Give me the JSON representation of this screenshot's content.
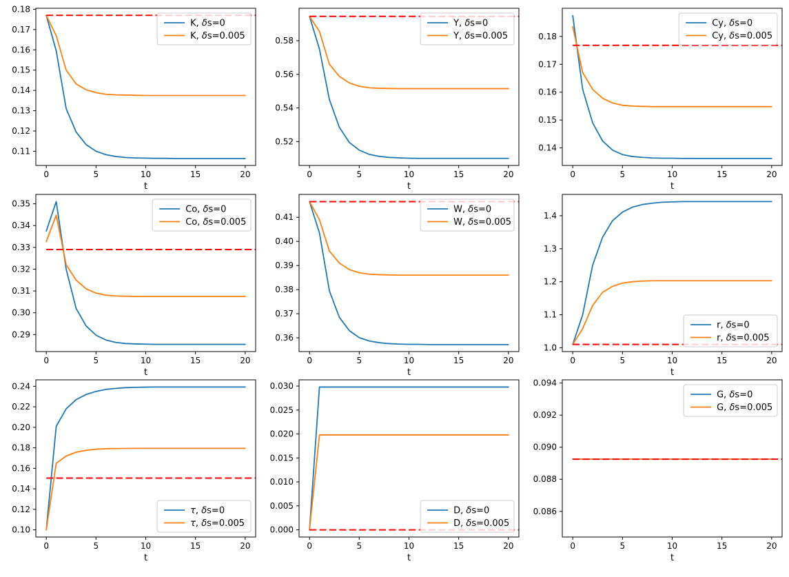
{
  "figure": {
    "title": "",
    "background": "#ffffff",
    "rows": 3,
    "cols": 3
  },
  "colors": {
    "series_baseline": "#1f77b4",
    "series_shock": "#ff7f0e",
    "reference": "#ff0000",
    "legend_border": "#cccccc"
  },
  "chart_data": [
    {
      "type": "line",
      "variable": "K",
      "xlabel": "t",
      "xlim": [
        -1.05,
        21.05
      ],
      "ylim": [
        0.103,
        0.1805
      ],
      "xticks": [
        0,
        5,
        10,
        15,
        20
      ],
      "xtick_labels": [
        "0",
        "5",
        "10",
        "15",
        "20"
      ],
      "yticks": [
        0.11,
        0.12,
        0.13,
        0.14,
        0.15,
        0.16,
        0.17,
        0.18
      ],
      "ytick_labels": [
        "0.11",
        "0.12",
        "0.13",
        "0.14",
        "0.15",
        "0.16",
        "0.17",
        "0.18"
      ],
      "legend_loc": "upper right",
      "grid": false,
      "ref_value": 0.177,
      "x": [
        0,
        1,
        2,
        3,
        4,
        5,
        6,
        7,
        8,
        9,
        10,
        11,
        12,
        13,
        14,
        15,
        16,
        17,
        18,
        19,
        20
      ],
      "series": [
        {
          "name": "K, δs=0",
          "color": "#1f77b4",
          "values": [
            0.177,
            0.1595,
            0.131,
            0.1195,
            0.1133,
            0.11,
            0.1083,
            0.1074,
            0.1069,
            0.1067,
            0.1066,
            0.1065,
            0.1065,
            0.1064,
            0.1064,
            0.1064,
            0.1064,
            0.1064,
            0.1064,
            0.1064,
            0.1064
          ]
        },
        {
          "name": "K, δs=0.005",
          "color": "#ff7f0e",
          "values": [
            0.177,
            0.167,
            0.15,
            0.1432,
            0.1403,
            0.1389,
            0.1381,
            0.1378,
            0.1377,
            0.1376,
            0.1375,
            0.1375,
            0.1375,
            0.1375,
            0.1375,
            0.1375,
            0.1375,
            0.1375,
            0.1375,
            0.1375,
            0.1375
          ]
        }
      ]
    },
    {
      "type": "line",
      "variable": "Y",
      "xlabel": "t",
      "xlim": [
        -1.05,
        21.05
      ],
      "ylim": [
        0.5058,
        0.5993
      ],
      "xticks": [
        0,
        5,
        10,
        15,
        20
      ],
      "xtick_labels": [
        "0",
        "5",
        "10",
        "15",
        "20"
      ],
      "yticks": [
        0.52,
        0.54,
        0.56,
        0.58
      ],
      "ytick_labels": [
        "0.52",
        "0.54",
        "0.56",
        "0.58"
      ],
      "legend_loc": "upper right",
      "grid": false,
      "ref_value": 0.5945,
      "x": [
        0,
        1,
        2,
        3,
        4,
        5,
        6,
        7,
        8,
        9,
        10,
        11,
        12,
        13,
        14,
        15,
        16,
        17,
        18,
        19,
        20
      ],
      "series": [
        {
          "name": "Y, δs=0",
          "color": "#1f77b4",
          "values": [
            0.5945,
            0.575,
            0.545,
            0.5285,
            0.5195,
            0.5149,
            0.5124,
            0.5112,
            0.5106,
            0.5103,
            0.5101,
            0.51,
            0.51,
            0.51,
            0.51,
            0.51,
            0.51,
            0.51,
            0.51,
            0.51,
            0.51
          ]
        },
        {
          "name": "Y, δs=0.005",
          "color": "#ff7f0e",
          "values": [
            0.5945,
            0.5855,
            0.566,
            0.5588,
            0.5549,
            0.5529,
            0.552,
            0.5517,
            0.5516,
            0.5515,
            0.5515,
            0.5515,
            0.5515,
            0.5515,
            0.5515,
            0.5515,
            0.5515,
            0.5515,
            0.5515,
            0.5515,
            0.5515
          ]
        }
      ]
    },
    {
      "type": "line",
      "variable": "Cy",
      "xlabel": "t",
      "xlim": [
        -1.05,
        21.05
      ],
      "ylim": [
        0.1337,
        0.1901
      ],
      "xticks": [
        0,
        5,
        10,
        15,
        20
      ],
      "xtick_labels": [
        "0",
        "5",
        "10",
        "15",
        "20"
      ],
      "yticks": [
        0.14,
        0.15,
        0.16,
        0.17,
        0.18
      ],
      "ytick_labels": [
        "0.14",
        "0.15",
        "0.16",
        "0.17",
        "0.18"
      ],
      "legend_loc": "upper right",
      "grid": false,
      "ref_value": 0.1768,
      "x": [
        0,
        1,
        2,
        3,
        4,
        5,
        6,
        7,
        8,
        9,
        10,
        11,
        12,
        13,
        14,
        15,
        16,
        17,
        18,
        19,
        20
      ],
      "series": [
        {
          "name": "Cy, δs=0",
          "color": "#1f77b4",
          "values": [
            0.1875,
            0.161,
            0.149,
            0.1425,
            0.1392,
            0.1376,
            0.1369,
            0.1366,
            0.1364,
            0.1363,
            0.1363,
            0.1362,
            0.1362,
            0.1362,
            0.1362,
            0.1362,
            0.1362,
            0.1362,
            0.1362,
            0.1362,
            0.1362
          ]
        },
        {
          "name": "Cy, δs=0.005",
          "color": "#ff7f0e",
          "values": [
            0.1835,
            0.167,
            0.161,
            0.1578,
            0.1561,
            0.1553,
            0.155,
            0.1549,
            0.1548,
            0.1548,
            0.1548,
            0.1548,
            0.1548,
            0.1548,
            0.1548,
            0.1548,
            0.1548,
            0.1548,
            0.1548,
            0.1548,
            0.1548
          ]
        }
      ]
    },
    {
      "type": "line",
      "variable": "Co",
      "xlabel": "t",
      "xlim": [
        -1.05,
        21.05
      ],
      "ylim": [
        0.2822,
        0.3543
      ],
      "xticks": [
        0,
        5,
        10,
        15,
        20
      ],
      "xtick_labels": [
        "0",
        "5",
        "10",
        "15",
        "20"
      ],
      "yticks": [
        0.29,
        0.3,
        0.31,
        0.32,
        0.33,
        0.34,
        0.35
      ],
      "ytick_labels": [
        "0.29",
        "0.30",
        "0.31",
        "0.32",
        "0.33",
        "0.34",
        "0.35"
      ],
      "legend_loc": "upper right",
      "grid": false,
      "ref_value": 0.329,
      "x": [
        0,
        1,
        2,
        3,
        4,
        5,
        6,
        7,
        8,
        9,
        10,
        11,
        12,
        13,
        14,
        15,
        16,
        17,
        18,
        19,
        20
      ],
      "series": [
        {
          "name": "Co, δs=0",
          "color": "#1f77b4",
          "values": [
            0.3375,
            0.351,
            0.32,
            0.302,
            0.294,
            0.2897,
            0.2875,
            0.2864,
            0.2859,
            0.2857,
            0.2856,
            0.2855,
            0.2855,
            0.2855,
            0.2855,
            0.2855,
            0.2855,
            0.2855,
            0.2855,
            0.2855,
            0.2855
          ]
        },
        {
          "name": "Co, δs=0.005",
          "color": "#ff7f0e",
          "values": [
            0.3327,
            0.3448,
            0.322,
            0.315,
            0.311,
            0.309,
            0.3081,
            0.3077,
            0.3076,
            0.3075,
            0.3075,
            0.3075,
            0.3075,
            0.3075,
            0.3075,
            0.3075,
            0.3075,
            0.3075,
            0.3075,
            0.3075,
            0.3075
          ]
        }
      ]
    },
    {
      "type": "line",
      "variable": "W",
      "xlabel": "t",
      "xlim": [
        -1.05,
        21.05
      ],
      "ylim": [
        0.3543,
        0.4195
      ],
      "xticks": [
        0,
        5,
        10,
        15,
        20
      ],
      "xtick_labels": [
        "0",
        "5",
        "10",
        "15",
        "20"
      ],
      "yticks": [
        0.36,
        0.37,
        0.38,
        0.39,
        0.4,
        0.41
      ],
      "ytick_labels": [
        "0.36",
        "0.37",
        "0.38",
        "0.39",
        "0.40",
        "0.41"
      ],
      "legend_loc": "upper right",
      "grid": false,
      "ref_value": 0.4165,
      "x": [
        0,
        1,
        2,
        3,
        4,
        5,
        6,
        7,
        8,
        9,
        10,
        11,
        12,
        13,
        14,
        15,
        16,
        17,
        18,
        19,
        20
      ],
      "series": [
        {
          "name": "W, δs=0",
          "color": "#1f77b4",
          "values": [
            0.4165,
            0.4035,
            0.3795,
            0.3685,
            0.363,
            0.3601,
            0.3587,
            0.358,
            0.3576,
            0.3574,
            0.3573,
            0.3573,
            0.3572,
            0.3572,
            0.3572,
            0.3572,
            0.3572,
            0.3572,
            0.3572,
            0.3572,
            0.3572
          ]
        },
        {
          "name": "W, δs=0.005",
          "color": "#ff7f0e",
          "values": [
            0.4165,
            0.409,
            0.396,
            0.391,
            0.3883,
            0.387,
            0.3864,
            0.3862,
            0.3861,
            0.386,
            0.386,
            0.386,
            0.386,
            0.386,
            0.386,
            0.386,
            0.386,
            0.386,
            0.386,
            0.386,
            0.386
          ]
        }
      ]
    },
    {
      "type": "line",
      "variable": "r",
      "xlabel": "t",
      "xlim": [
        -1.05,
        21.05
      ],
      "ylim": [
        0.9883,
        1.4647
      ],
      "xticks": [
        0,
        5,
        10,
        15,
        20
      ],
      "xtick_labels": [
        "0",
        "5",
        "10",
        "15",
        "20"
      ],
      "yticks": [
        1.0,
        1.1,
        1.2,
        1.3,
        1.4
      ],
      "ytick_labels": [
        "1.0",
        "1.1",
        "1.2",
        "1.3",
        "1.4"
      ],
      "legend_loc": "lower right",
      "grid": false,
      "ref_value": 1.01,
      "x": [
        0,
        1,
        2,
        3,
        4,
        5,
        6,
        7,
        8,
        9,
        10,
        11,
        12,
        13,
        14,
        15,
        16,
        17,
        18,
        19,
        20
      ],
      "series": [
        {
          "name": "r, δs=0",
          "color": "#1f77b4",
          "values": [
            1.01,
            1.1,
            1.25,
            1.335,
            1.385,
            1.411,
            1.426,
            1.434,
            1.438,
            1.441,
            1.442,
            1.443,
            1.443,
            1.443,
            1.443,
            1.443,
            1.443,
            1.443,
            1.443,
            1.443,
            1.443
          ]
        },
        {
          "name": "r, δs=0.005",
          "color": "#ff7f0e",
          "values": [
            1.01,
            1.058,
            1.128,
            1.168,
            1.186,
            1.196,
            1.2,
            1.202,
            1.203,
            1.203,
            1.203,
            1.203,
            1.203,
            1.203,
            1.203,
            1.203,
            1.203,
            1.203,
            1.203,
            1.203,
            1.203
          ]
        }
      ]
    },
    {
      "type": "line",
      "variable": "τ",
      "xlabel": "t",
      "xlim": [
        -1.05,
        21.05
      ],
      "ylim": [
        0.093,
        0.2463
      ],
      "xticks": [
        0,
        5,
        10,
        15,
        20
      ],
      "xtick_labels": [
        "0",
        "5",
        "10",
        "15",
        "20"
      ],
      "yticks": [
        0.1,
        0.12,
        0.14,
        0.16,
        0.18,
        0.2,
        0.22,
        0.24
      ],
      "ytick_labels": [
        "0.10",
        "0.12",
        "0.14",
        "0.16",
        "0.18",
        "0.20",
        "0.22",
        "0.24"
      ],
      "legend_loc": "lower right",
      "grid": false,
      "ref_value": 0.1505,
      "x": [
        0,
        1,
        2,
        3,
        4,
        5,
        6,
        7,
        8,
        9,
        10,
        11,
        12,
        13,
        14,
        15,
        16,
        17,
        18,
        19,
        20
      ],
      "series": [
        {
          "name": "τ, δs=0",
          "color": "#1f77b4",
          "values": [
            0.1,
            0.201,
            0.218,
            0.227,
            0.232,
            0.235,
            0.237,
            0.238,
            0.2387,
            0.239,
            0.2392,
            0.2393,
            0.2393,
            0.2393,
            0.2393,
            0.2393,
            0.2393,
            0.2393,
            0.2393,
            0.2393,
            0.2393
          ]
        },
        {
          "name": "τ, δs=0.005",
          "color": "#ff7f0e",
          "values": [
            0.1,
            0.165,
            0.172,
            0.1757,
            0.1776,
            0.1786,
            0.1791,
            0.1793,
            0.1794,
            0.1795,
            0.1795,
            0.1795,
            0.1795,
            0.1795,
            0.1795,
            0.1795,
            0.1795,
            0.1795,
            0.1795,
            0.1795,
            0.1795
          ]
        }
      ]
    },
    {
      "type": "line",
      "variable": "D",
      "xlabel": "t",
      "xlim": [
        -1.05,
        21.05
      ],
      "ylim": [
        -0.0015,
        0.0313
      ],
      "xticks": [
        0,
        5,
        10,
        15,
        20
      ],
      "xtick_labels": [
        "0",
        "5",
        "10",
        "15",
        "20"
      ],
      "yticks": [
        0.0,
        0.005,
        0.01,
        0.015,
        0.02,
        0.025,
        0.03
      ],
      "ytick_labels": [
        "0.000",
        "0.005",
        "0.010",
        "0.015",
        "0.020",
        "0.025",
        "0.030"
      ],
      "legend_loc": "lower right",
      "grid": false,
      "ref_value": 0.0,
      "x": [
        0,
        1,
        2,
        3,
        4,
        5,
        6,
        7,
        8,
        9,
        10,
        11,
        12,
        13,
        14,
        15,
        16,
        17,
        18,
        19,
        20
      ],
      "series": [
        {
          "name": "D, δs=0",
          "color": "#1f77b4",
          "values": [
            0,
            0.0298,
            0.0298,
            0.0298,
            0.0298,
            0.0298,
            0.0298,
            0.0298,
            0.0298,
            0.0298,
            0.0298,
            0.0298,
            0.0298,
            0.0298,
            0.0298,
            0.0298,
            0.0298,
            0.0298,
            0.0298,
            0.0298,
            0.0298
          ]
        },
        {
          "name": "D, δs=0.005",
          "color": "#ff7f0e",
          "values": [
            0,
            0.0198,
            0.0198,
            0.0198,
            0.0198,
            0.0198,
            0.0198,
            0.0198,
            0.0198,
            0.0198,
            0.0198,
            0.0198,
            0.0198,
            0.0198,
            0.0198,
            0.0198,
            0.0198,
            0.0198,
            0.0198,
            0.0198,
            0.0198
          ]
        }
      ]
    },
    {
      "type": "line",
      "variable": "G",
      "xlabel": "t",
      "xlim": [
        -1.05,
        21.05
      ],
      "ylim": [
        0.0844,
        0.0942
      ],
      "xticks": [
        0,
        5,
        10,
        15,
        20
      ],
      "xtick_labels": [
        "0",
        "5",
        "10",
        "15",
        "20"
      ],
      "yticks": [
        0.086,
        0.088,
        0.09,
        0.092,
        0.094
      ],
      "ytick_labels": [
        "0.086",
        "0.088",
        "0.090",
        "0.092",
        "0.094"
      ],
      "legend_loc": "upper right",
      "grid": false,
      "ref_value": 0.08925,
      "x": [
        0,
        1,
        2,
        3,
        4,
        5,
        6,
        7,
        8,
        9,
        10,
        11,
        12,
        13,
        14,
        15,
        16,
        17,
        18,
        19,
        20
      ],
      "series": [
        {
          "name": "G, δs=0",
          "color": "#1f77b4",
          "values": [
            0.08925,
            0.08925,
            0.08925,
            0.08925,
            0.08925,
            0.08925,
            0.08925,
            0.08925,
            0.08925,
            0.08925,
            0.08925,
            0.08925,
            0.08925,
            0.08925,
            0.08925,
            0.08925,
            0.08925,
            0.08925,
            0.08925,
            0.08925,
            0.08925
          ]
        },
        {
          "name": "G, δs=0.005",
          "color": "#ff7f0e",
          "values": [
            0.08925,
            0.08925,
            0.08925,
            0.08925,
            0.08925,
            0.08925,
            0.08925,
            0.08925,
            0.08925,
            0.08925,
            0.08925,
            0.08925,
            0.08925,
            0.08925,
            0.08925,
            0.08925,
            0.08925,
            0.08925,
            0.08925,
            0.08925,
            0.08925
          ]
        }
      ]
    }
  ]
}
